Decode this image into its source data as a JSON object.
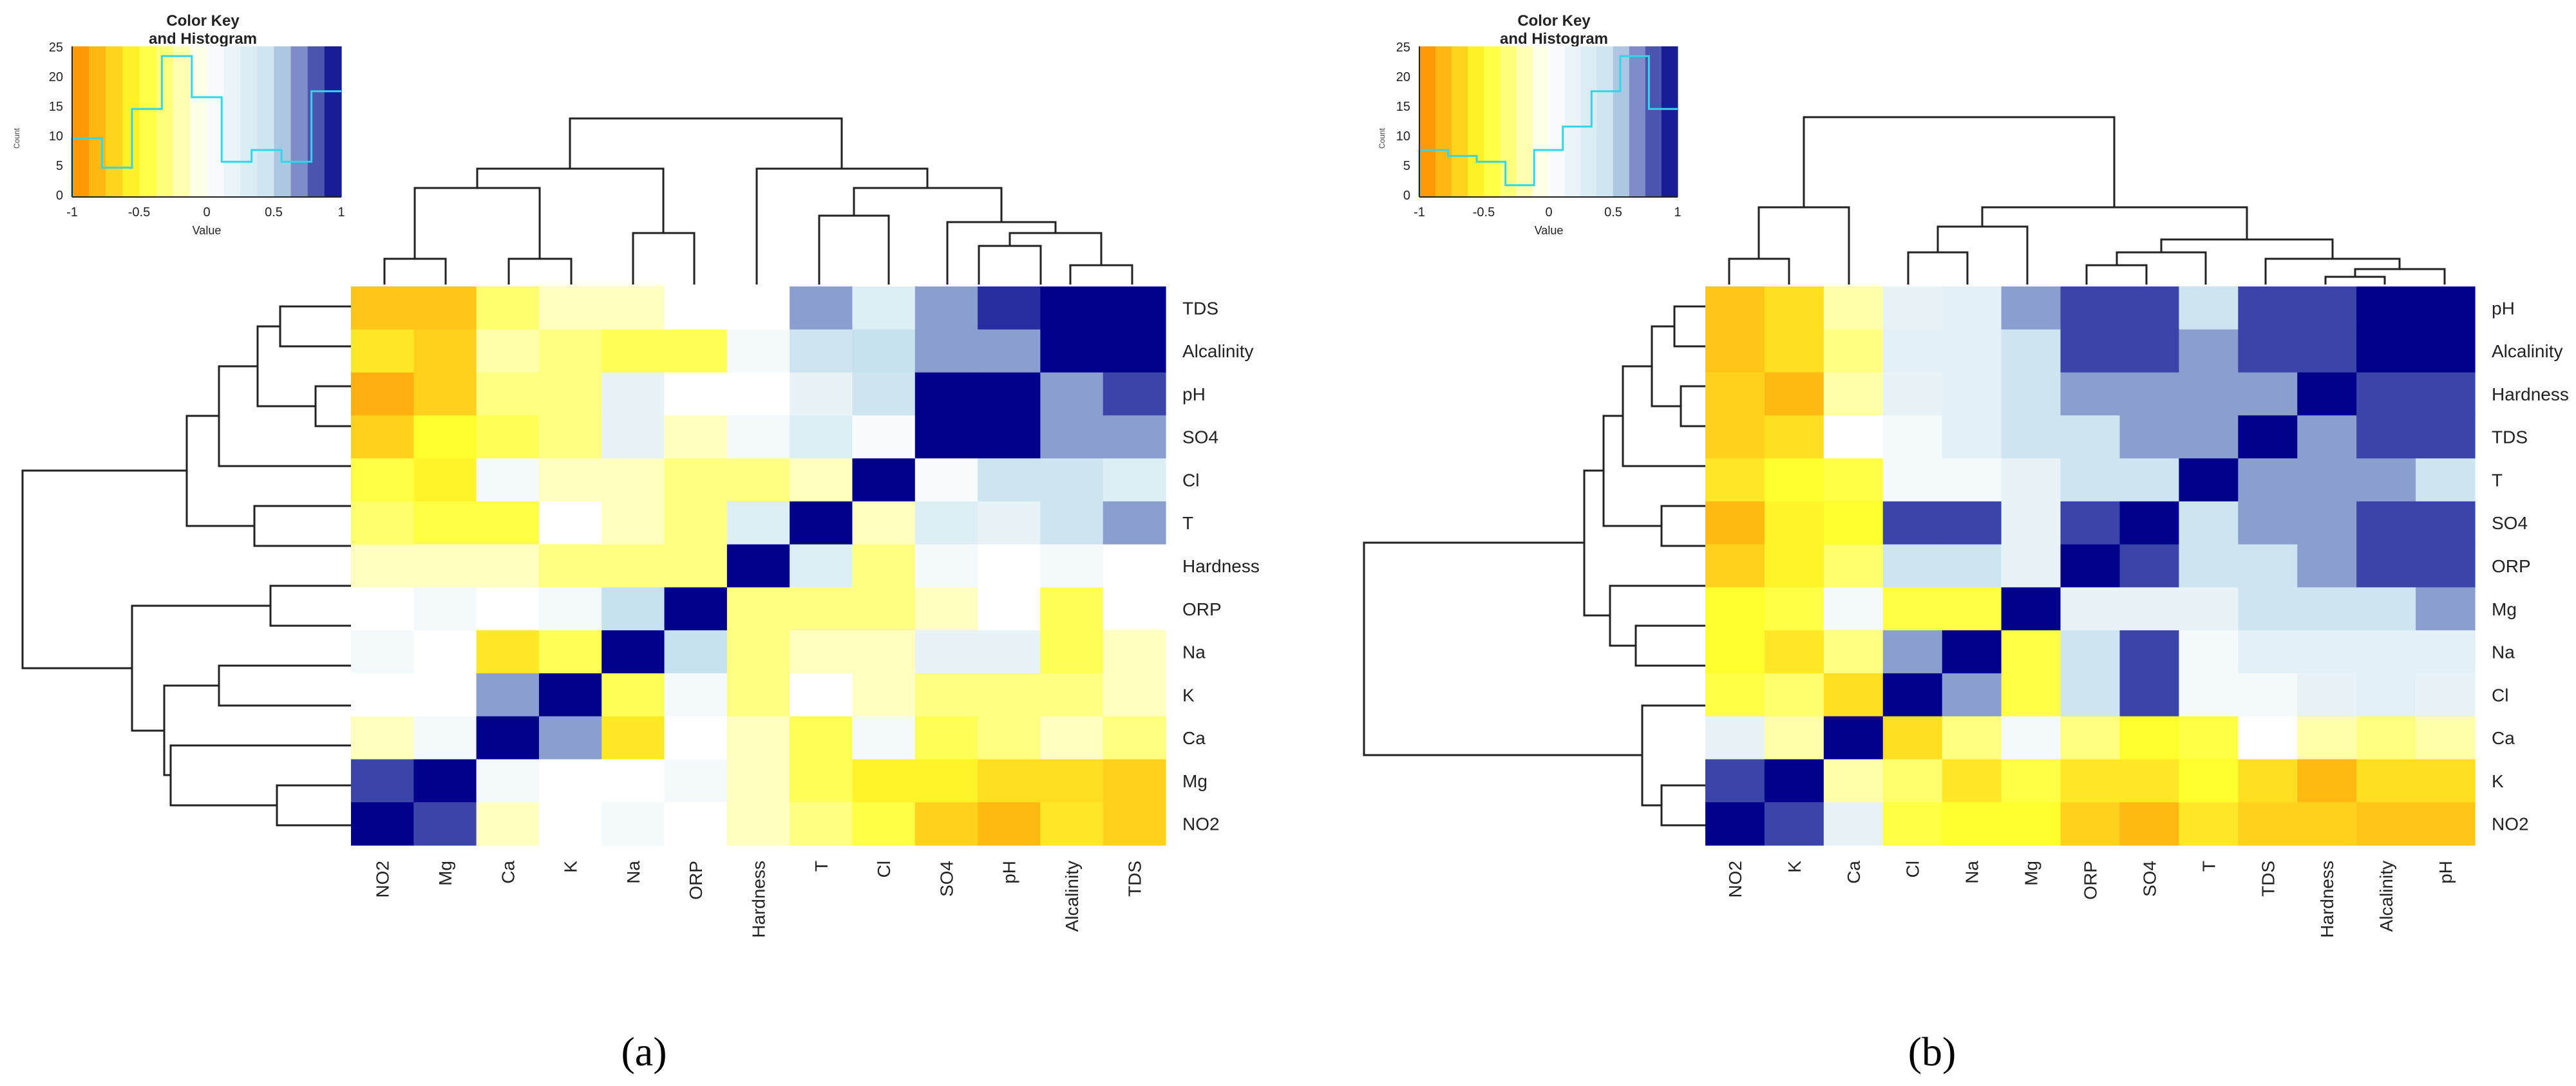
{
  "figure": {
    "panel_a_label": "(a)",
    "panel_b_label": "(b)",
    "color_key": {
      "title_line1": "Color Key",
      "title_line2": "and Histogram",
      "x_axis_label": "Value",
      "y_axis_label": "Count",
      "x_ticks": [
        "-1",
        "-0.5",
        "0",
        "0.5",
        "1"
      ],
      "y_ticks": [
        "0",
        "5",
        "10",
        "15",
        "20",
        "25"
      ]
    }
  },
  "colors": {
    "orange": "#FF8C00",
    "yellow": "#FFFF2E",
    "white": "#FFFFFF",
    "light_blue": "#C6E2EE",
    "dark_blue": "#00008B",
    "histogram_line": "#33D6E8"
  },
  "chart_data": [
    {
      "type": "heatmap",
      "id": "a",
      "title": "(a)",
      "value_range": [
        -1,
        1
      ],
      "row_labels": [
        "TDS",
        "Alcalinity",
        "pH",
        "SO4",
        "Cl",
        "T",
        "Hardness",
        "ORP",
        "Na",
        "K",
        "Ca",
        "Mg",
        "NO2"
      ],
      "col_labels": [
        "NO2",
        "Mg",
        "Ca",
        "K",
        "Na",
        "ORP",
        "Hardness",
        "T",
        "Cl",
        "SO4",
        "pH",
        "Alcalinity",
        "TDS"
      ],
      "values": [
        [
          -0.75,
          -0.75,
          -0.35,
          -0.15,
          -0.15,
          0,
          0,
          0.65,
          0.3,
          0.65,
          0.9,
          1,
          1
        ],
        [
          -0.6,
          -0.7,
          -0.2,
          -0.3,
          -0.4,
          -0.4,
          0.1,
          0.45,
          0.5,
          0.65,
          0.65,
          1,
          1
        ],
        [
          -0.85,
          -0.7,
          -0.3,
          -0.3,
          0.2,
          0,
          0,
          0.2,
          0.45,
          1,
          1,
          0.65,
          0.85
        ],
        [
          -0.7,
          -0.5,
          -0.4,
          -0.3,
          0.2,
          -0.15,
          0.1,
          0.3,
          0.05,
          1,
          1,
          0.65,
          0.65
        ],
        [
          -0.45,
          -0.55,
          0.1,
          -0.15,
          -0.15,
          -0.3,
          -0.3,
          -0.15,
          1,
          0.05,
          0.45,
          0.45,
          0.3
        ],
        [
          -0.35,
          -0.45,
          -0.45,
          0,
          -0.15,
          -0.3,
          0.3,
          1,
          -0.15,
          0.3,
          0.2,
          0.45,
          0.65
        ],
        [
          -0.15,
          -0.15,
          -0.15,
          -0.3,
          -0.3,
          -0.3,
          1,
          0.3,
          -0.3,
          0.1,
          0,
          0.1,
          0
        ],
        [
          0,
          0.1,
          0,
          0.1,
          0.5,
          1,
          -0.3,
          -0.3,
          -0.3,
          -0.15,
          0,
          -0.4,
          0
        ],
        [
          0.1,
          0,
          -0.6,
          -0.4,
          1,
          0.5,
          -0.3,
          -0.15,
          -0.15,
          0.2,
          0.2,
          -0.4,
          -0.15
        ],
        [
          0,
          0,
          0.65,
          1,
          -0.4,
          0.1,
          -0.3,
          0,
          -0.15,
          -0.3,
          -0.3,
          -0.3,
          -0.15
        ],
        [
          -0.15,
          0.1,
          1,
          0.65,
          -0.6,
          0,
          -0.15,
          -0.4,
          0.1,
          -0.4,
          -0.3,
          -0.15,
          -0.3
        ],
        [
          0.85,
          1,
          0.1,
          0,
          0,
          0.1,
          -0.15,
          -0.4,
          -0.55,
          -0.55,
          -0.65,
          -0.65,
          -0.7
        ],
        [
          1,
          0.85,
          -0.15,
          0,
          0.1,
          0,
          -0.15,
          -0.3,
          -0.45,
          -0.7,
          -0.8,
          -0.6,
          -0.7
        ]
      ],
      "histogram_counts": [
        10,
        5,
        15,
        24,
        17,
        6,
        8,
        6,
        18
      ]
    },
    {
      "type": "heatmap",
      "id": "b",
      "title": "(b)",
      "value_range": [
        -1,
        1
      ],
      "row_labels": [
        "pH",
        "Alcalinity",
        "Hardness",
        "TDS",
        "T",
        "SO4",
        "ORP",
        "Mg",
        "Na",
        "Cl",
        "Ca",
        "K",
        "NO2"
      ],
      "col_labels": [
        "NO2",
        "K",
        "Ca",
        "Cl",
        "Na",
        "Mg",
        "ORP",
        "SO4",
        "T",
        "TDS",
        "Hardness",
        "Alcalinity",
        "pH"
      ],
      "values": [
        [
          -0.75,
          -0.65,
          -0.2,
          0.2,
          0.25,
          0.65,
          0.85,
          0.85,
          0.45,
          0.85,
          0.85,
          1,
          1
        ],
        [
          -0.75,
          -0.65,
          -0.3,
          0.25,
          0.25,
          0.45,
          0.85,
          0.85,
          0.65,
          0.85,
          0.85,
          1,
          1
        ],
        [
          -0.7,
          -0.8,
          -0.2,
          0.2,
          0.25,
          0.45,
          0.65,
          0.65,
          0.65,
          0.65,
          1,
          0.85,
          0.85
        ],
        [
          -0.7,
          -0.65,
          0,
          0.1,
          0.25,
          0.45,
          0.45,
          0.65,
          0.65,
          1,
          0.65,
          0.85,
          0.85
        ],
        [
          -0.6,
          -0.5,
          -0.45,
          0.1,
          0.1,
          0.2,
          0.45,
          0.45,
          1,
          0.65,
          0.65,
          0.65,
          0.45
        ],
        [
          -0.8,
          -0.55,
          -0.5,
          0.85,
          0.85,
          0.2,
          0.85,
          1,
          0.45,
          0.65,
          0.65,
          0.85,
          0.85
        ],
        [
          -0.7,
          -0.55,
          -0.35,
          0.45,
          0.45,
          0.2,
          1,
          0.85,
          0.45,
          0.45,
          0.65,
          0.85,
          0.85
        ],
        [
          -0.5,
          -0.45,
          0.1,
          -0.45,
          -0.45,
          1,
          0.2,
          0.2,
          0.2,
          0.45,
          0.45,
          0.45,
          0.65
        ],
        [
          -0.5,
          -0.6,
          -0.3,
          0.65,
          1,
          -0.45,
          0.45,
          0.85,
          0.1,
          0.25,
          0.25,
          0.25,
          0.25
        ],
        [
          -0.45,
          -0.35,
          -0.65,
          1,
          0.65,
          -0.45,
          0.45,
          0.85,
          0.1,
          0.1,
          0.2,
          0.25,
          0.2
        ],
        [
          0.2,
          -0.2,
          1,
          -0.65,
          -0.3,
          0.1,
          -0.3,
          -0.5,
          -0.45,
          0,
          -0.2,
          -0.3,
          -0.2
        ],
        [
          0.85,
          1,
          -0.2,
          -0.35,
          -0.6,
          -0.45,
          -0.6,
          -0.6,
          -0.5,
          -0.65,
          -0.8,
          -0.65,
          -0.65
        ],
        [
          1,
          0.85,
          0.2,
          -0.45,
          -0.5,
          -0.5,
          -0.7,
          -0.8,
          -0.6,
          -0.7,
          -0.7,
          -0.75,
          -0.75
        ]
      ],
      "histogram_counts": [
        8,
        7,
        6,
        2,
        8,
        12,
        18,
        24,
        15
      ]
    }
  ]
}
